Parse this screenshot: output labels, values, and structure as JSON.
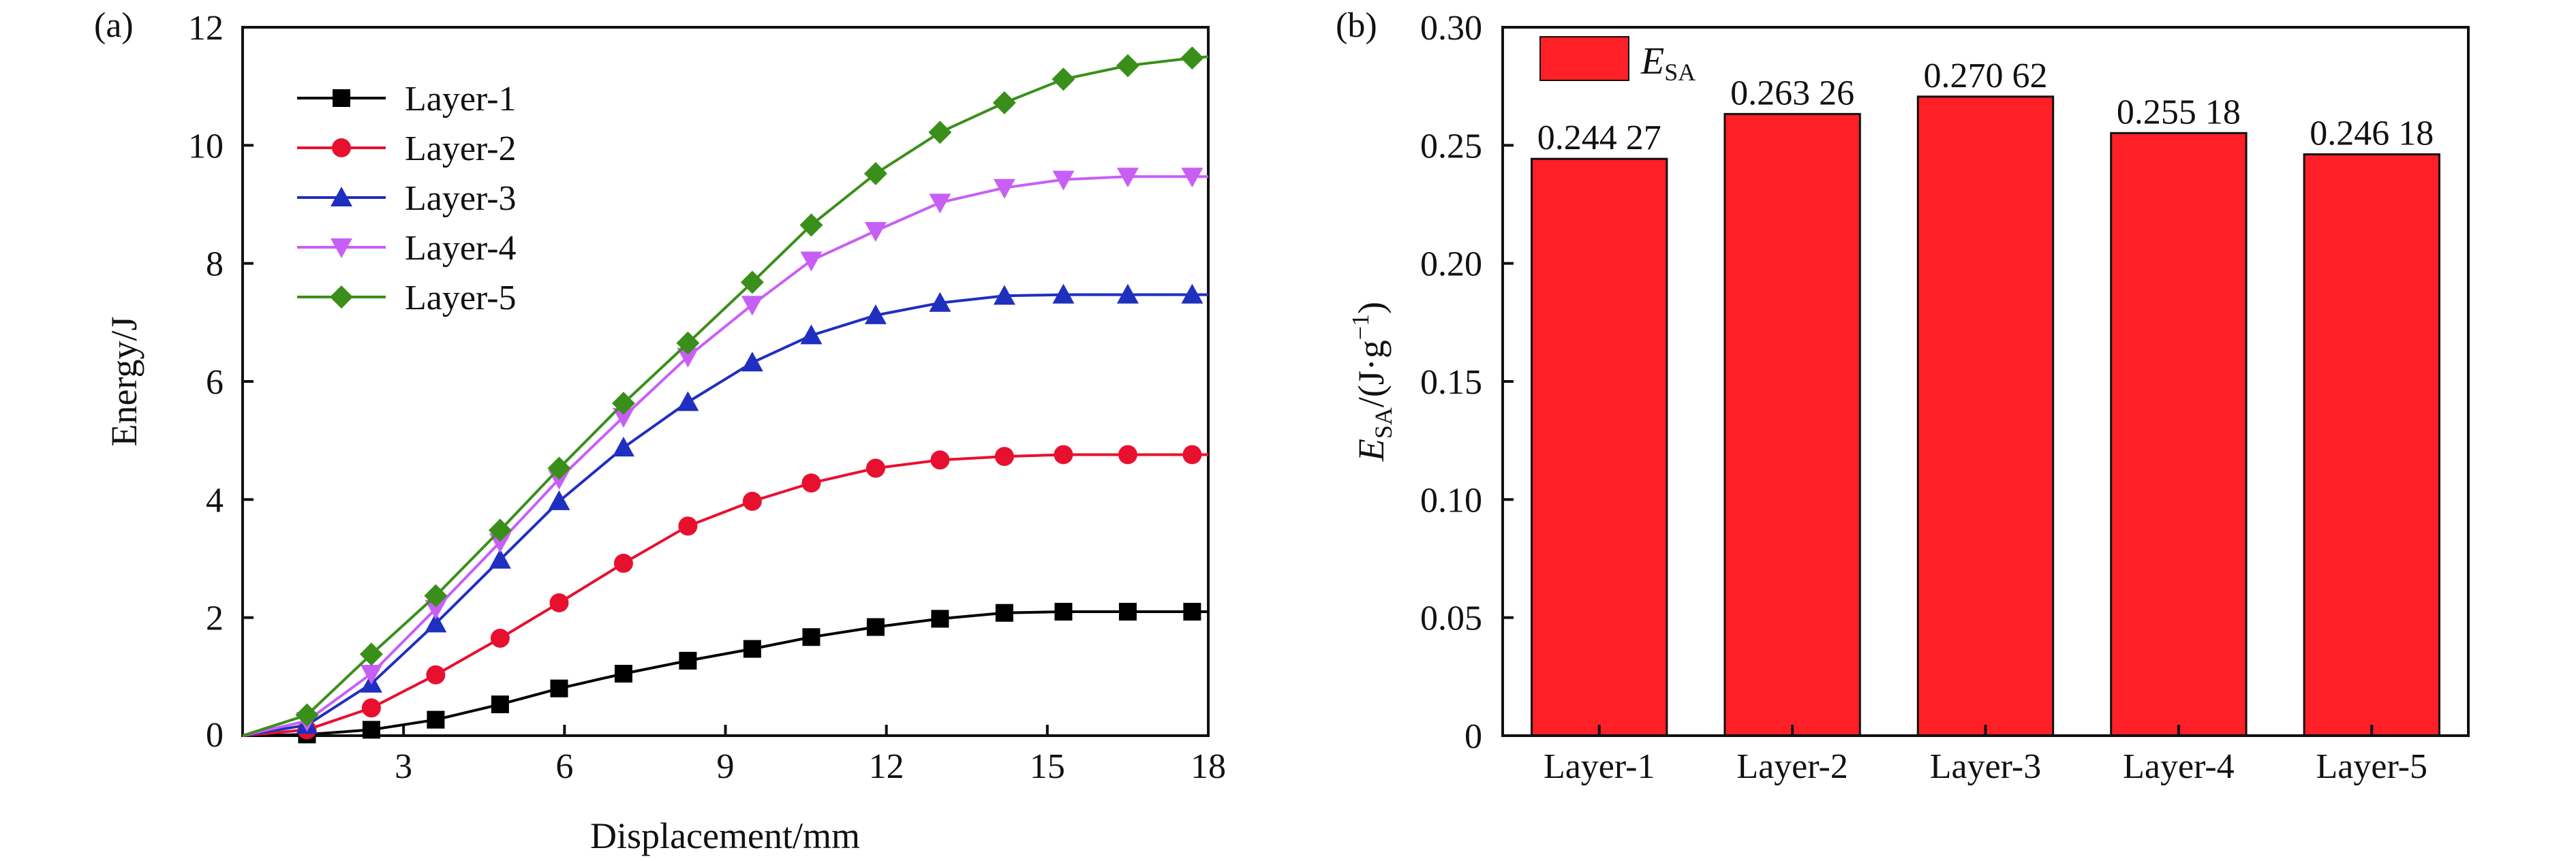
{
  "chart_data": [
    {
      "panel_label": "(a)",
      "type": "line",
      "xlabel": "Displacement/mm",
      "ylabel": "Energy/J",
      "xlim": [
        0,
        18
      ],
      "ylim": [
        0,
        12
      ],
      "xticks": [
        3,
        6,
        9,
        12,
        15,
        18
      ],
      "yticks": [
        0,
        2,
        4,
        6,
        8,
        10,
        12
      ],
      "legend_position": "top-left",
      "series": [
        {
          "name": "Layer-1",
          "color": "#000000",
          "marker": "square",
          "x": [
            0,
            1.2,
            2.4,
            3.6,
            4.8,
            5.9,
            7.1,
            8.3,
            9.5,
            10.6,
            11.8,
            13.0,
            14.2,
            15.3,
            16.5,
            17.7,
            18.0
          ],
          "y": [
            0,
            0.02,
            0.1,
            0.27,
            0.53,
            0.8,
            1.05,
            1.27,
            1.47,
            1.67,
            1.84,
            1.98,
            2.08,
            2.1,
            2.1,
            2.1,
            2.1
          ]
        },
        {
          "name": "Layer-2",
          "color": "#e8102f",
          "marker": "circle",
          "x": [
            0,
            1.2,
            2.4,
            3.6,
            4.8,
            5.9,
            7.1,
            8.3,
            9.5,
            10.6,
            11.8,
            13.0,
            14.2,
            15.3,
            16.5,
            17.7,
            18.0
          ],
          "y": [
            0,
            0.1,
            0.47,
            1.03,
            1.65,
            2.25,
            2.92,
            3.55,
            3.97,
            4.28,
            4.53,
            4.67,
            4.73,
            4.76,
            4.76,
            4.76,
            4.76
          ]
        },
        {
          "name": "Layer-3",
          "color": "#1f2fbf",
          "marker": "triangle-up",
          "x": [
            0,
            1.2,
            2.4,
            3.6,
            4.8,
            5.9,
            7.1,
            8.3,
            9.5,
            10.6,
            11.8,
            13.0,
            14.2,
            15.3,
            16.5,
            17.7,
            18.0
          ],
          "y": [
            0,
            0.18,
            0.88,
            1.9,
            2.98,
            3.97,
            4.88,
            5.65,
            6.32,
            6.78,
            7.12,
            7.33,
            7.45,
            7.47,
            7.47,
            7.47,
            7.47
          ]
        },
        {
          "name": "Layer-4",
          "color": "#c85ff5",
          "marker": "triangle-down",
          "x": [
            0,
            1.2,
            2.4,
            3.6,
            4.8,
            5.9,
            7.1,
            8.3,
            9.5,
            10.6,
            11.8,
            13.0,
            14.2,
            15.3,
            16.5,
            17.7,
            18.0
          ],
          "y": [
            0,
            0.25,
            1.05,
            2.15,
            3.28,
            4.35,
            5.4,
            6.42,
            7.3,
            8.05,
            8.55,
            9.03,
            9.28,
            9.42,
            9.47,
            9.47,
            9.47
          ]
        },
        {
          "name": "Layer-5",
          "color": "#3a8f1a",
          "marker": "diamond",
          "x": [
            0,
            1.2,
            2.4,
            3.6,
            4.8,
            5.9,
            7.1,
            8.3,
            9.5,
            10.6,
            11.8,
            13.0,
            14.2,
            15.3,
            16.5,
            17.7,
            18.0
          ],
          "y": [
            0,
            0.35,
            1.38,
            2.37,
            3.48,
            4.53,
            5.63,
            6.65,
            7.68,
            8.65,
            9.52,
            10.22,
            10.72,
            11.12,
            11.35,
            11.48,
            11.5
          ]
        }
      ]
    },
    {
      "panel_label": "(b)",
      "type": "bar",
      "categories": [
        "Layer-1",
        "Layer-2",
        "Layer-3",
        "Layer-4",
        "Layer-5"
      ],
      "values": [
        0.24427,
        0.26326,
        0.27062,
        0.25518,
        0.24618
      ],
      "value_labels": [
        "0.244 27",
        "0.263 26",
        "0.270 62",
        "0.255 18",
        "0.246 18"
      ],
      "bar_color": "#ff1f26",
      "legend": {
        "label": "E",
        "sub": "SA",
        "position": "top-left"
      },
      "ylabel": {
        "E": "E",
        "sub": "SA",
        "rest": "/(J·g",
        "sup": "−1",
        "end": ")"
      },
      "ylim": [
        0,
        0.3
      ],
      "yticks": [
        "0",
        "0.05",
        "0.10",
        "0.15",
        "0.20",
        "0.25",
        "0.30"
      ]
    }
  ]
}
